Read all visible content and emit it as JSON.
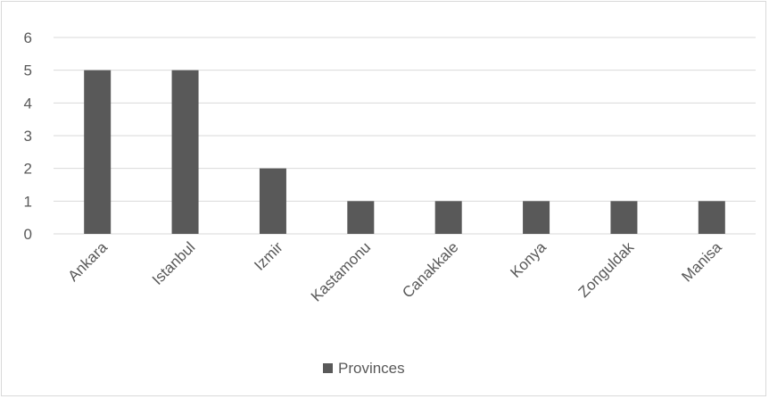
{
  "chart_data": {
    "type": "bar",
    "categories": [
      "Ankara",
      "Istanbul",
      "Izmir",
      "Kastamonu",
      "Canakkale",
      "Konya",
      "Zonguldak",
      "Manisa"
    ],
    "series": [
      {
        "name": "Provinces",
        "values": [
          5,
          5,
          2,
          1,
          1,
          1,
          1,
          1
        ]
      }
    ],
    "y_ticks": [
      "0",
      "1",
      "2",
      "3",
      "4",
      "5",
      "6"
    ],
    "ylim": [
      0,
      6
    ],
    "grid": true,
    "legend": "bottom",
    "bar_color": "#595959",
    "gridline_color": "#d9d9d9",
    "text_color": "#595959"
  },
  "legend": {
    "label": "Provinces"
  }
}
